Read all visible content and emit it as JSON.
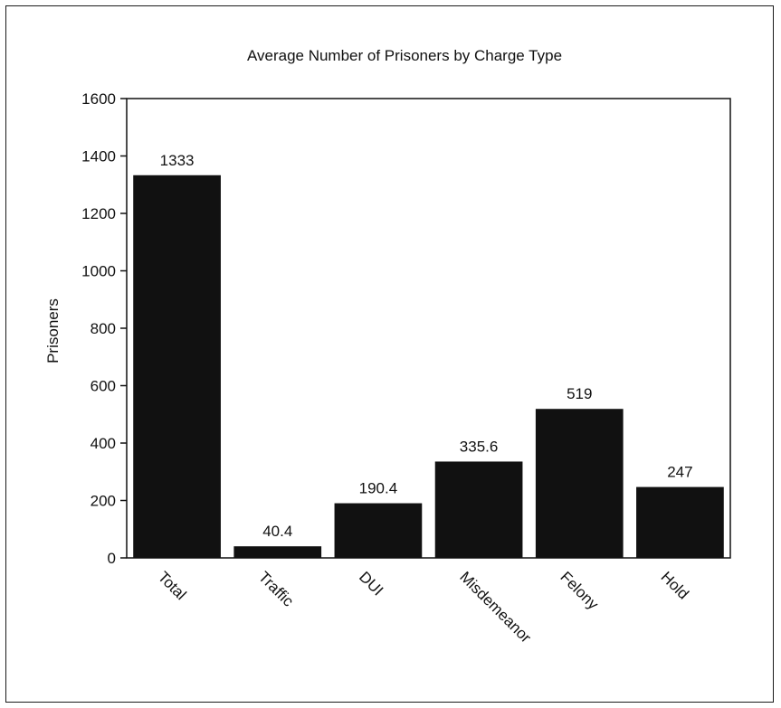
{
  "chart_data": {
    "type": "bar",
    "title": "Average Number of Prisoners by Charge Type",
    "xlabel": "",
    "ylabel": "Prisoners",
    "categories": [
      "Total",
      "Traffic",
      "DUI",
      "Misdemeanor",
      "Felony",
      "Hold"
    ],
    "values": [
      1333,
      40.4,
      190.4,
      335.6,
      519,
      247
    ],
    "value_labels": [
      "1333",
      "40.4",
      "190.4",
      "335.6",
      "519",
      "247"
    ],
    "ylim": [
      0,
      1600
    ],
    "yticks": [
      0,
      200,
      400,
      600,
      800,
      1000,
      1200,
      1400,
      1600
    ],
    "ytick_labels": [
      "0",
      "200",
      "400",
      "600",
      "800",
      "1000",
      "1200",
      "1400",
      "1600"
    ],
    "grid": false,
    "legend": "none",
    "bar_color": "#111111"
  }
}
